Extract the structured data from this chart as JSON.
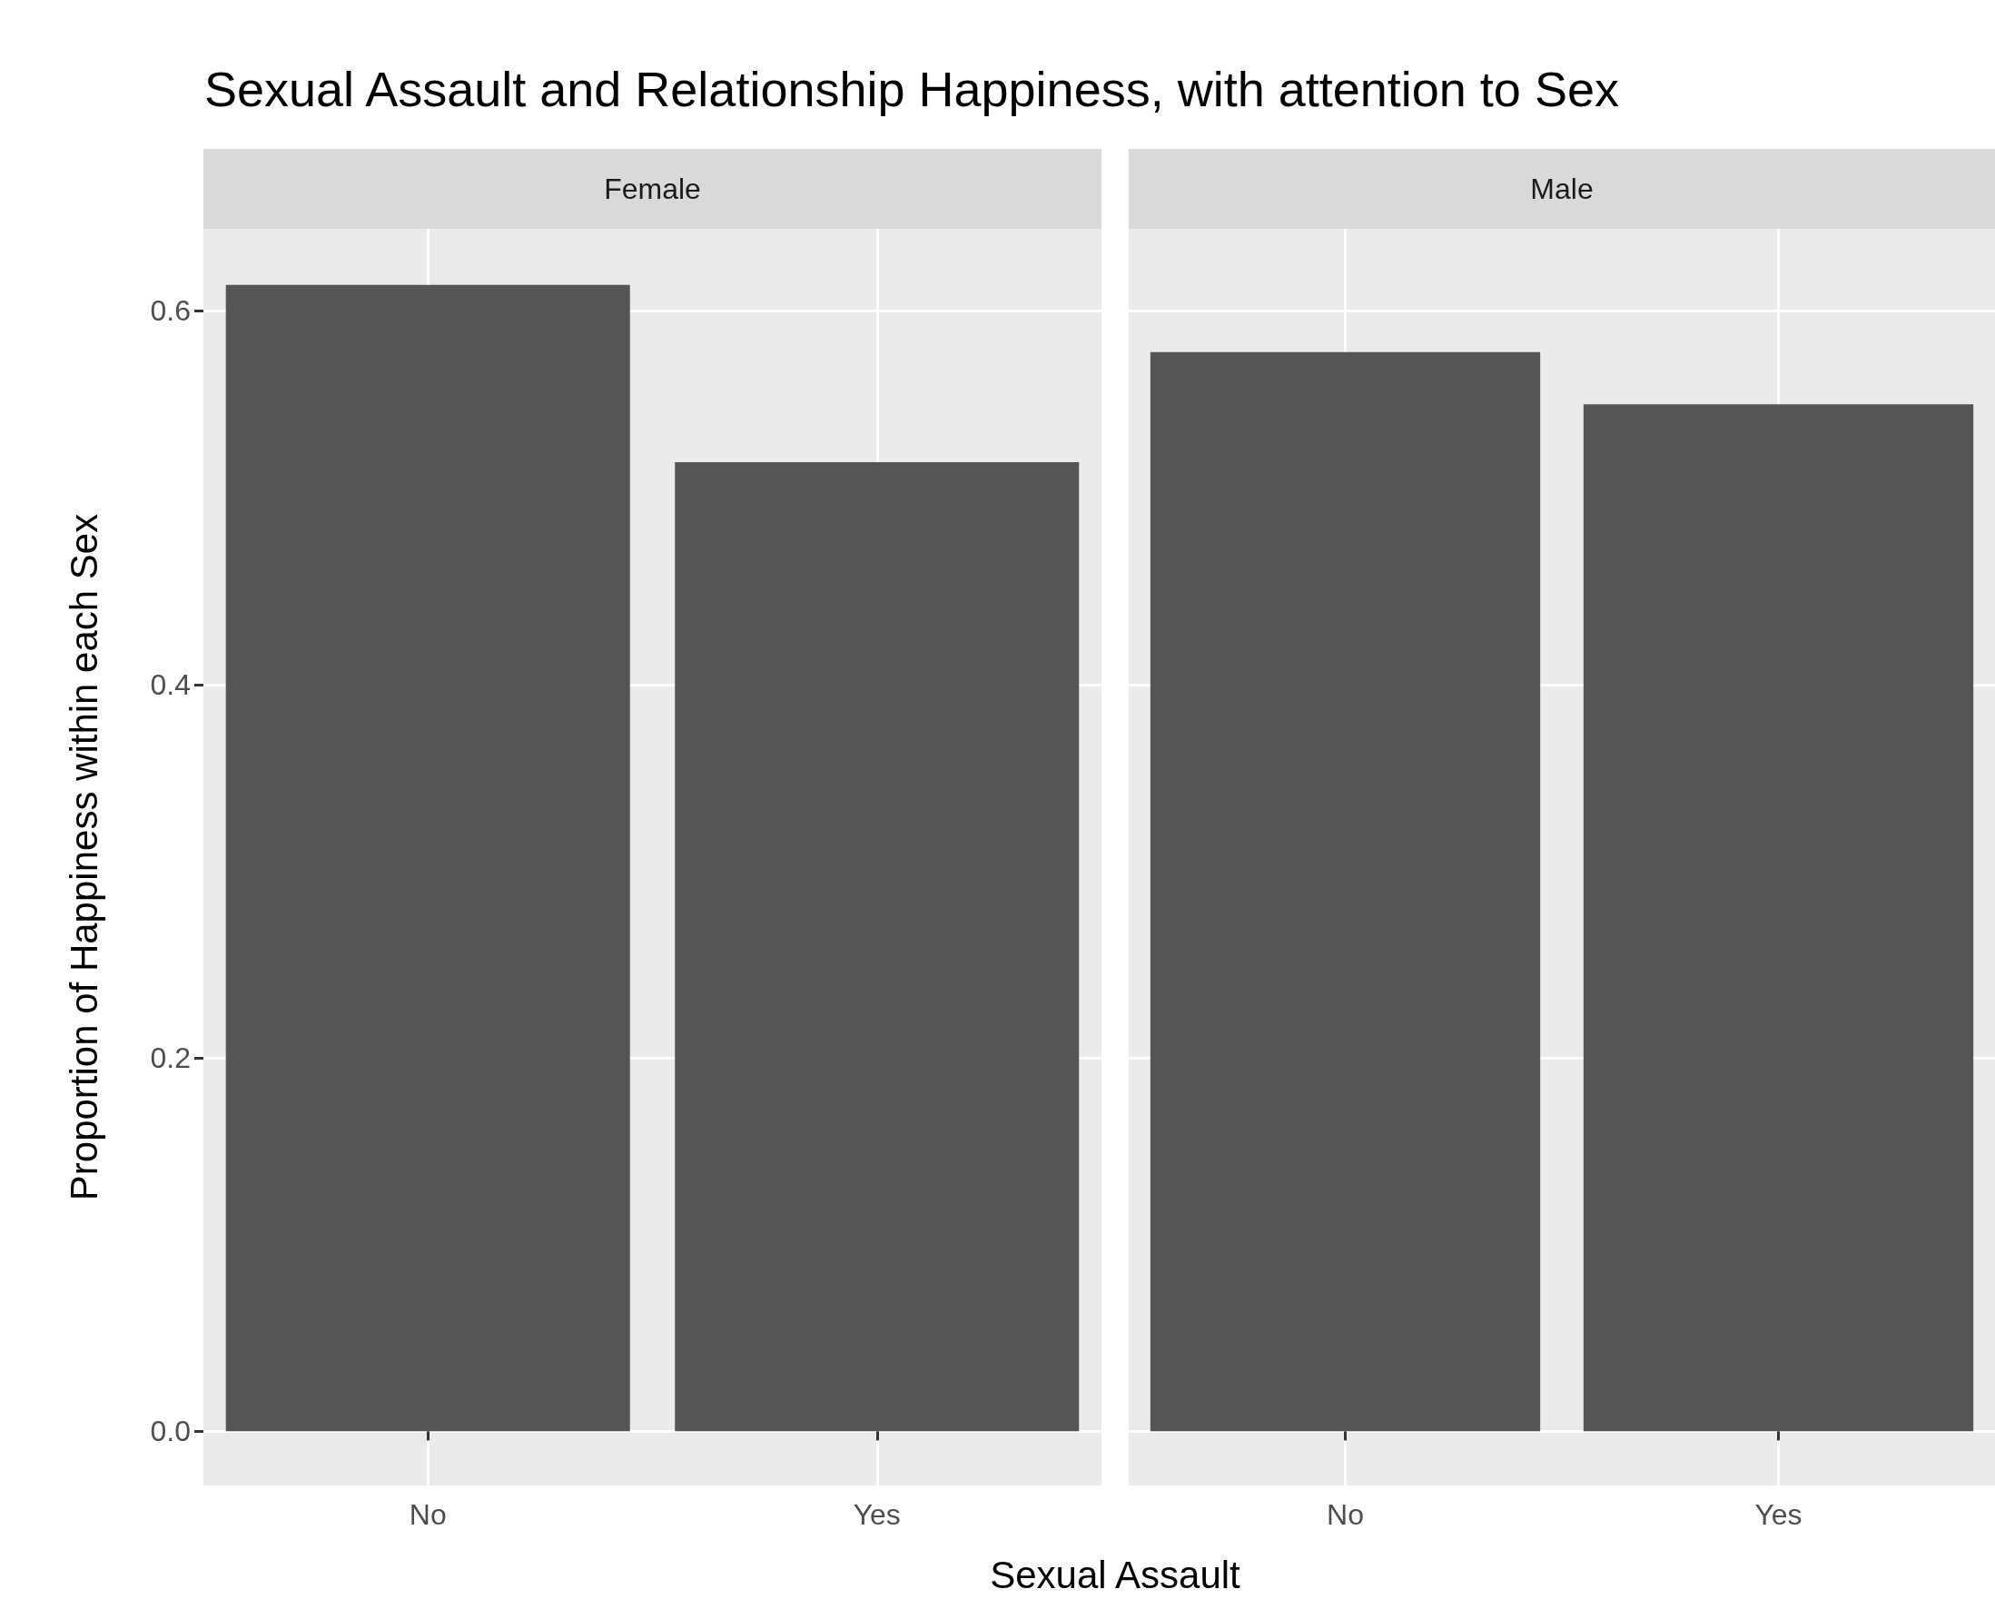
{
  "chart_data": [
    {
      "type": "bar",
      "title": "Sexual Assault and Relationship Happiness, with attention to Sex",
      "subtitle": "Female",
      "xlabel": "Sexual Assault",
      "ylabel": "Proportion of Happiness within each Sex",
      "categories": [
        "No",
        "Yes"
      ],
      "values": [
        0.614,
        0.519
      ],
      "color": "#555555",
      "ylim": [
        -0.029,
        0.644
      ],
      "yticks": [
        {
          "value": 0,
          "label": "0.0"
        },
        {
          "value": 0.2,
          "label": "0.2"
        },
        {
          "value": 0.4,
          "label": "0.4"
        },
        {
          "value": 0.6,
          "label": "0.6"
        }
      ],
      "grid": true
    },
    {
      "type": "bar",
      "subtitle": "Male",
      "categories": [
        "No",
        "Yes"
      ],
      "values": [
        0.578,
        0.55
      ],
      "color": "#555555",
      "ylim": [
        -0.029,
        0.644
      ],
      "yticks": [
        {
          "value": 0,
          "label": null
        },
        {
          "value": 0.2,
          "label": null
        },
        {
          "value": 0.4,
          "label": null
        },
        {
          "value": 0.6,
          "label": null
        }
      ],
      "grid": true,
      "tick_labels": "x"
    }
  ]
}
